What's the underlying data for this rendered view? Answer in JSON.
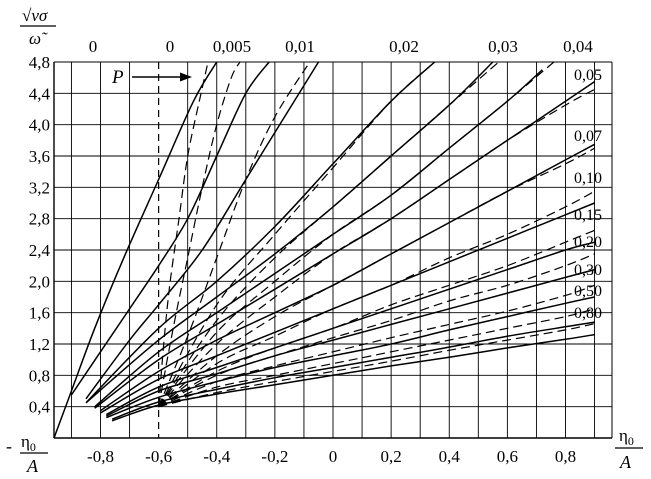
{
  "chart_data": {
    "type": "line",
    "y_axis_title": "√ν σ / ω̃",
    "x_axis_title_left": "- η₀ / A",
    "x_axis_title_right": "η₀ / A",
    "xlim": [
      -0.96,
      0.96
    ],
    "ylim": [
      0,
      4.8
    ],
    "x_ticks": [
      -0.8,
      -0.6,
      -0.4,
      -0.2,
      0,
      0.2,
      0.4,
      0.6,
      0.8
    ],
    "x_tick_labels": [
      "-0,8",
      "-0,6",
      "-0,4",
      "-0,2",
      "0",
      "0,2",
      "0,4",
      "0,6",
      "0,8"
    ],
    "y_ticks": [
      0.4,
      0.8,
      1.2,
      1.6,
      2.0,
      2.4,
      2.8,
      3.2,
      3.6,
      4.0,
      4.4,
      4.8
    ],
    "y_tick_labels": [
      "0,4",
      "0,8",
      "1,2",
      "1,6",
      "2,0",
      "2,4",
      "2,8",
      "3,2",
      "3,6",
      "4,0",
      "4,4",
      "4,8"
    ],
    "x_minor_grid_step": 0.1,
    "y_grid_step": 0.4,
    "grid": true,
    "annotation_p": "P",
    "top_labels": [
      "0",
      "0",
      "0,005",
      "0,01",
      "0,02",
      "0,03",
      "0,04"
    ],
    "right_labels": [
      "0,05",
      "0,07",
      "0,10",
      "0,15",
      "0,20",
      "0,30",
      "0,50",
      "0,80"
    ],
    "series": [
      {
        "name": "0",
        "style": "solid",
        "x": [
          -0.96,
          -0.9,
          -0.82,
          -0.72,
          -0.6,
          -0.48,
          -0.4
        ],
        "y": [
          0.0,
          0.6,
          1.4,
          2.3,
          3.3,
          4.3,
          4.8
        ]
      },
      {
        "name": "0",
        "style": "dashed",
        "x": [
          -0.6,
          -0.58,
          -0.56,
          -0.53,
          -0.5,
          -0.46,
          -0.43
        ],
        "y": [
          0.4,
          1.3,
          2.0,
          2.8,
          3.6,
          4.3,
          4.8
        ]
      },
      {
        "name": "0,005",
        "style": "solid",
        "x": [
          -0.9,
          -0.8,
          -0.7,
          -0.6,
          -0.5,
          -0.4,
          -0.3,
          -0.22
        ],
        "y": [
          0.55,
          1.1,
          1.65,
          2.2,
          2.8,
          3.6,
          4.4,
          4.8
        ]
      },
      {
        "name": "0,005",
        "style": "dashed",
        "x": [
          -0.6,
          -0.55,
          -0.5,
          -0.45,
          -0.4,
          -0.35,
          -0.32
        ],
        "y": [
          0.4,
          1.4,
          2.3,
          3.2,
          4.0,
          4.6,
          4.8
        ]
      },
      {
        "name": "0,01",
        "style": "solid",
        "x": [
          -0.85,
          -0.7,
          -0.6,
          -0.45,
          -0.3,
          -0.15,
          -0.05
        ],
        "y": [
          0.5,
          1.25,
          1.7,
          2.4,
          3.3,
          4.2,
          4.8
        ]
      },
      {
        "name": "0,01",
        "style": "dashed",
        "x": [
          -0.6,
          -0.5,
          -0.4,
          -0.3,
          -0.2,
          -0.08
        ],
        "y": [
          0.4,
          1.3,
          2.3,
          3.3,
          4.1,
          4.8
        ]
      },
      {
        "name": "0,02",
        "style": "solid",
        "x": [
          -0.85,
          -0.6,
          -0.4,
          -0.2,
          0.0,
          0.2,
          0.35
        ],
        "y": [
          0.45,
          1.4,
          2.0,
          2.7,
          3.5,
          4.3,
          4.8
        ]
      },
      {
        "name": "0,02",
        "style": "dashed",
        "x": [
          -0.6,
          -0.4,
          -0.2,
          0.0,
          0.2,
          0.35
        ],
        "y": [
          0.4,
          1.7,
          2.6,
          3.45,
          4.3,
          4.8
        ]
      },
      {
        "name": "0,03",
        "style": "solid",
        "x": [
          -0.85,
          -0.6,
          -0.4,
          -0.2,
          0.0,
          0.2,
          0.4,
          0.55
        ],
        "y": [
          0.45,
          1.25,
          1.8,
          2.35,
          2.95,
          3.6,
          4.25,
          4.8
        ]
      },
      {
        "name": "0,03",
        "style": "dashed",
        "x": [
          -0.6,
          -0.4,
          -0.2,
          0.0,
          0.2,
          0.4,
          0.57
        ],
        "y": [
          0.4,
          1.5,
          2.3,
          2.95,
          3.6,
          4.25,
          4.8
        ]
      },
      {
        "name": "0,04",
        "style": "solid",
        "x": [
          -0.82,
          -0.6,
          -0.4,
          -0.2,
          0.0,
          0.2,
          0.4,
          0.6,
          0.72
        ],
        "y": [
          0.4,
          1.1,
          1.6,
          2.1,
          2.6,
          3.1,
          3.7,
          4.3,
          4.7
        ]
      },
      {
        "name": "0,04",
        "style": "dashed",
        "x": [
          -0.6,
          -0.4,
          -0.2,
          0.0,
          0.2,
          0.4,
          0.6,
          0.76
        ],
        "y": [
          0.4,
          1.35,
          2.0,
          2.6,
          3.1,
          3.7,
          4.3,
          4.8
        ]
      },
      {
        "name": "0,05",
        "style": "solid",
        "x": [
          -0.82,
          -0.6,
          -0.4,
          -0.2,
          0.0,
          0.2,
          0.4,
          0.6,
          0.8,
          0.9
        ],
        "y": [
          0.38,
          1.0,
          1.45,
          1.9,
          2.35,
          2.8,
          3.3,
          3.8,
          4.3,
          4.55
        ]
      },
      {
        "name": "0,05",
        "style": "dashed",
        "x": [
          -0.6,
          -0.4,
          -0.2,
          0.0,
          0.2,
          0.4,
          0.6,
          0.8,
          0.9
        ],
        "y": [
          0.4,
          1.2,
          1.8,
          2.35,
          2.8,
          3.3,
          3.8,
          4.25,
          4.45
        ]
      },
      {
        "name": "0,07",
        "style": "solid",
        "x": [
          -0.8,
          -0.6,
          -0.4,
          -0.2,
          0.0,
          0.2,
          0.4,
          0.6,
          0.8,
          0.9
        ],
        "y": [
          0.35,
          0.85,
          1.25,
          1.6,
          1.95,
          2.35,
          2.75,
          3.15,
          3.55,
          3.75
        ]
      },
      {
        "name": "0,07",
        "style": "dashed",
        "x": [
          -0.6,
          -0.4,
          -0.2,
          0.0,
          0.2,
          0.4,
          0.6,
          0.8,
          0.9
        ],
        "y": [
          0.4,
          1.05,
          1.55,
          1.95,
          2.35,
          2.75,
          3.15,
          3.5,
          3.7
        ]
      },
      {
        "name": "0,10",
        "style": "solid",
        "x": [
          -0.8,
          -0.6,
          -0.4,
          -0.2,
          0.0,
          0.2,
          0.4,
          0.6,
          0.8,
          0.9
        ],
        "y": [
          0.32,
          0.75,
          1.05,
          1.35,
          1.65,
          1.95,
          2.25,
          2.55,
          2.85,
          3.0
        ]
      },
      {
        "name": "0,10",
        "style": "dashed",
        "x": [
          -0.6,
          -0.4,
          -0.2,
          0.0,
          0.2,
          0.4,
          0.6,
          0.8,
          0.9
        ],
        "y": [
          0.4,
          0.95,
          1.3,
          1.65,
          1.95,
          2.3,
          2.6,
          2.95,
          3.15
        ]
      },
      {
        "name": "0,15",
        "style": "solid",
        "x": [
          -0.78,
          -0.6,
          -0.4,
          -0.2,
          0.0,
          0.2,
          0.4,
          0.6,
          0.8,
          0.9
        ],
        "y": [
          0.3,
          0.65,
          0.9,
          1.15,
          1.4,
          1.65,
          1.9,
          2.15,
          2.4,
          2.5
        ]
      },
      {
        "name": "0,15",
        "style": "dashed",
        "x": [
          -0.6,
          -0.4,
          -0.2,
          0.0,
          0.2,
          0.4,
          0.6,
          0.8,
          0.9
        ],
        "y": [
          0.4,
          0.85,
          1.15,
          1.4,
          1.7,
          1.95,
          2.2,
          2.5,
          2.65
        ]
      },
      {
        "name": "0,20",
        "style": "solid",
        "x": [
          -0.78,
          -0.6,
          -0.4,
          -0.2,
          0.0,
          0.2,
          0.4,
          0.6,
          0.8,
          0.9
        ],
        "y": [
          0.28,
          0.6,
          0.82,
          1.05,
          1.25,
          1.45,
          1.65,
          1.85,
          2.05,
          2.15
        ]
      },
      {
        "name": "0,20",
        "style": "dashed",
        "x": [
          -0.6,
          -0.4,
          -0.2,
          0.0,
          0.2,
          0.4,
          0.6,
          0.8,
          0.9
        ],
        "y": [
          0.4,
          0.8,
          1.05,
          1.28,
          1.5,
          1.75,
          1.95,
          2.2,
          2.35
        ]
      },
      {
        "name": "0,30",
        "style": "solid",
        "x": [
          -0.78,
          -0.6,
          -0.4,
          -0.2,
          0.0,
          0.2,
          0.4,
          0.6,
          0.8,
          0.9
        ],
        "y": [
          0.26,
          0.52,
          0.72,
          0.9,
          1.05,
          1.2,
          1.38,
          1.55,
          1.72,
          1.8
        ]
      },
      {
        "name": "0,30",
        "style": "dashed",
        "x": [
          -0.6,
          -0.4,
          -0.2,
          0.0,
          0.2,
          0.4,
          0.6,
          0.8,
          0.9
        ],
        "y": [
          0.4,
          0.72,
          0.92,
          1.1,
          1.28,
          1.45,
          1.62,
          1.82,
          1.95
        ]
      },
      {
        "name": "0,50",
        "style": "solid",
        "x": [
          -0.76,
          -0.6,
          -0.4,
          -0.2,
          0.0,
          0.2,
          0.4,
          0.6,
          0.8,
          0.9
        ],
        "y": [
          0.24,
          0.46,
          0.62,
          0.77,
          0.9,
          1.03,
          1.16,
          1.3,
          1.42,
          1.48
        ]
      },
      {
        "name": "0,50",
        "style": "dashed",
        "x": [
          -0.6,
          -0.4,
          -0.2,
          0.0,
          0.2,
          0.4,
          0.6,
          0.8,
          0.9
        ],
        "y": [
          0.4,
          0.65,
          0.8,
          0.95,
          1.1,
          1.25,
          1.4,
          1.55,
          1.65
        ]
      },
      {
        "name": "0,80",
        "style": "solid",
        "x": [
          -0.76,
          -0.6,
          -0.4,
          -0.2,
          0.0,
          0.2,
          0.4,
          0.6,
          0.8,
          0.9
        ],
        "y": [
          0.22,
          0.42,
          0.56,
          0.68,
          0.8,
          0.92,
          1.03,
          1.15,
          1.26,
          1.32
        ]
      },
      {
        "name": "0,80",
        "style": "dashed",
        "x": [
          -0.6,
          -0.4,
          -0.2,
          0.0,
          0.2,
          0.4,
          0.6,
          0.8,
          0.9
        ],
        "y": [
          0.4,
          0.58,
          0.72,
          0.85,
          0.98,
          1.12,
          1.25,
          1.38,
          1.46
        ]
      }
    ]
  }
}
